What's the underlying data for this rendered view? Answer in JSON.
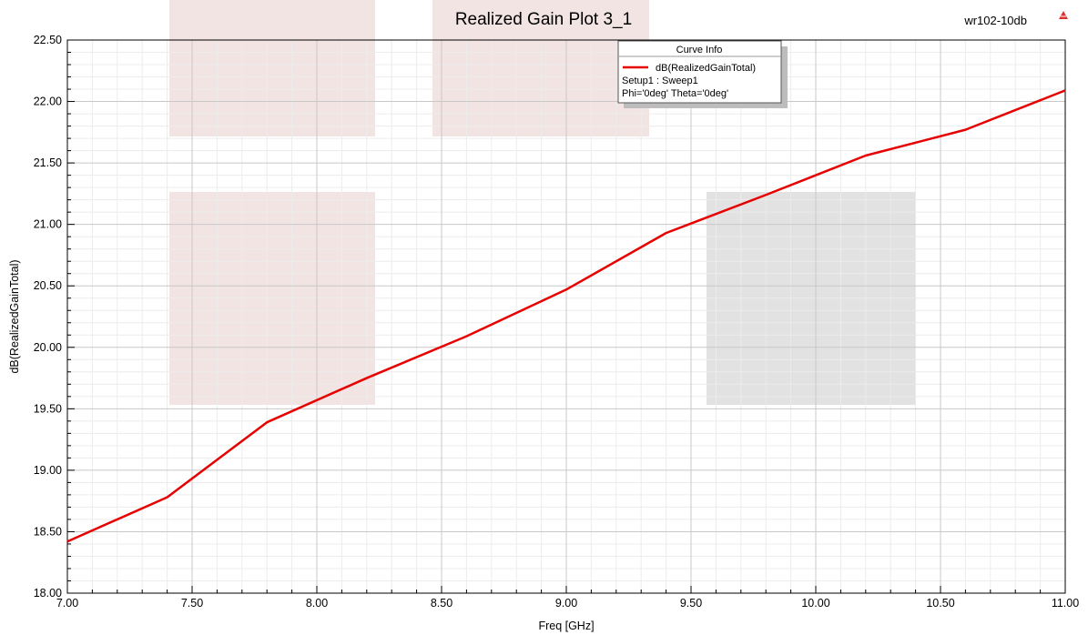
{
  "chart_data": {
    "type": "line",
    "title": "Realized Gain Plot 3_1",
    "design_name": "wr102-10db",
    "xlabel": "Freq [GHz]",
    "ylabel": "dB(RealizedGainTotal)",
    "xlim": [
      7.0,
      11.0
    ],
    "ylim": [
      18.0,
      22.5
    ],
    "xticks": [
      "7.00",
      "7.50",
      "8.00",
      "8.50",
      "9.00",
      "9.50",
      "10.00",
      "10.50",
      "11.00"
    ],
    "yticks": [
      "18.00",
      "18.50",
      "19.00",
      "19.50",
      "20.00",
      "20.50",
      "21.00",
      "21.50",
      "22.00",
      "22.50"
    ],
    "grid": true,
    "legend": {
      "title": "Curve Info",
      "placement": "top-center",
      "entries": [
        "dB(RealizedGainTotal)"
      ],
      "detail_lines": [
        "Setup1 : Sweep1",
        "Phi='0deg' Theta='0deg'"
      ]
    },
    "series": [
      {
        "name": "dB(RealizedGainTotal)",
        "color": "#e60000",
        "x": [
          7.0,
          7.4,
          7.8,
          8.2,
          8.6,
          9.0,
          9.4,
          9.8,
          10.2,
          10.6,
          11.0
        ],
        "values": [
          18.42,
          18.78,
          19.39,
          19.75,
          20.09,
          20.47,
          20.93,
          21.24,
          21.56,
          21.77,
          22.09
        ]
      }
    ]
  },
  "colors": {
    "grid_major": "#c8c8c8",
    "grid_minor": "#ececec",
    "watermark_pink": "#f3e4e4",
    "watermark_gray": "#e2e2e2",
    "logo": "#e03030"
  },
  "icons": {
    "logo": "ansys-logo-icon"
  }
}
